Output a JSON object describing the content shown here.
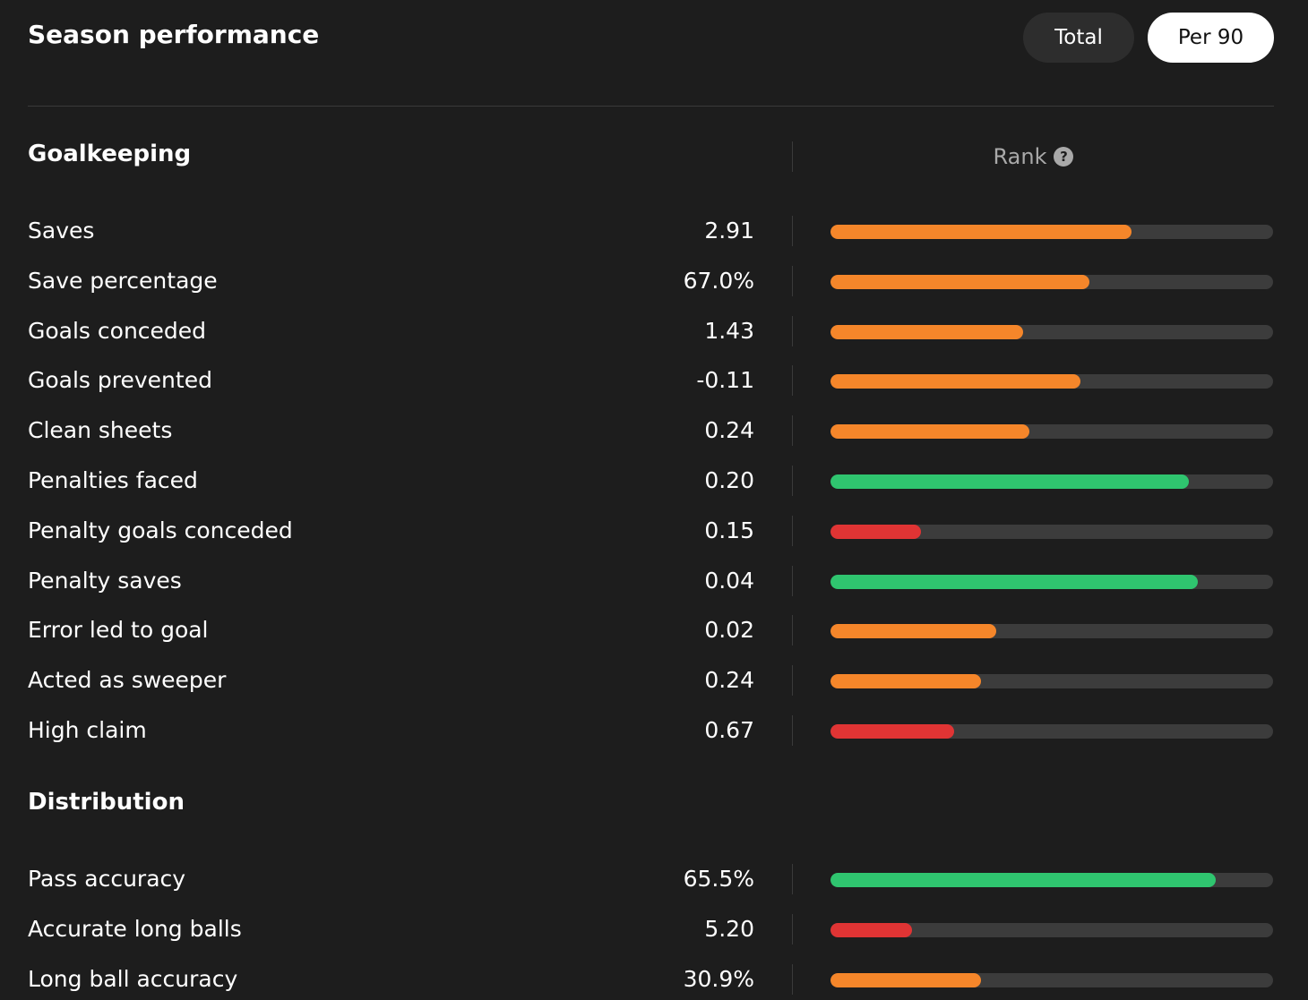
{
  "header": {
    "title": "Season performance",
    "toggle_total": "Total",
    "toggle_per90": "Per 90"
  },
  "colors": {
    "orange": "#f5862a",
    "green": "#2fc56f",
    "red": "#e03434"
  },
  "goalkeeping": {
    "title": "Goalkeeping",
    "rank_label": "Rank",
    "rank_help_glyph": "?",
    "rows": [
      {
        "label": "Saves",
        "value": "2.91",
        "rank_fraction": 0.68,
        "color": "orange"
      },
      {
        "label": "Save percentage",
        "value": "67.0%",
        "rank_fraction": 0.585,
        "color": "orange"
      },
      {
        "label": "Goals conceded",
        "value": "1.43",
        "rank_fraction": 0.435,
        "color": "orange"
      },
      {
        "label": "Goals prevented",
        "value": "-0.11",
        "rank_fraction": 0.565,
        "color": "orange"
      },
      {
        "label": "Clean sheets",
        "value": "0.24",
        "rank_fraction": 0.45,
        "color": "orange"
      },
      {
        "label": "Penalties faced",
        "value": "0.20",
        "rank_fraction": 0.81,
        "color": "green"
      },
      {
        "label": "Penalty goals conceded",
        "value": "0.15",
        "rank_fraction": 0.205,
        "color": "red"
      },
      {
        "label": "Penalty saves",
        "value": "0.04",
        "rank_fraction": 0.83,
        "color": "green"
      },
      {
        "label": "Error led to goal",
        "value": "0.02",
        "rank_fraction": 0.375,
        "color": "orange"
      },
      {
        "label": "Acted as sweeper",
        "value": "0.24",
        "rank_fraction": 0.34,
        "color": "orange"
      },
      {
        "label": "High claim",
        "value": "0.67",
        "rank_fraction": 0.28,
        "color": "red"
      }
    ]
  },
  "distribution": {
    "title": "Distribution",
    "rows": [
      {
        "label": "Pass accuracy",
        "value": "65.5%",
        "rank_fraction": 0.87,
        "color": "green"
      },
      {
        "label": "Accurate long balls",
        "value": "5.20",
        "rank_fraction": 0.185,
        "color": "red"
      },
      {
        "label": "Long ball accuracy",
        "value": "30.9%",
        "rank_fraction": 0.34,
        "color": "orange"
      }
    ]
  }
}
